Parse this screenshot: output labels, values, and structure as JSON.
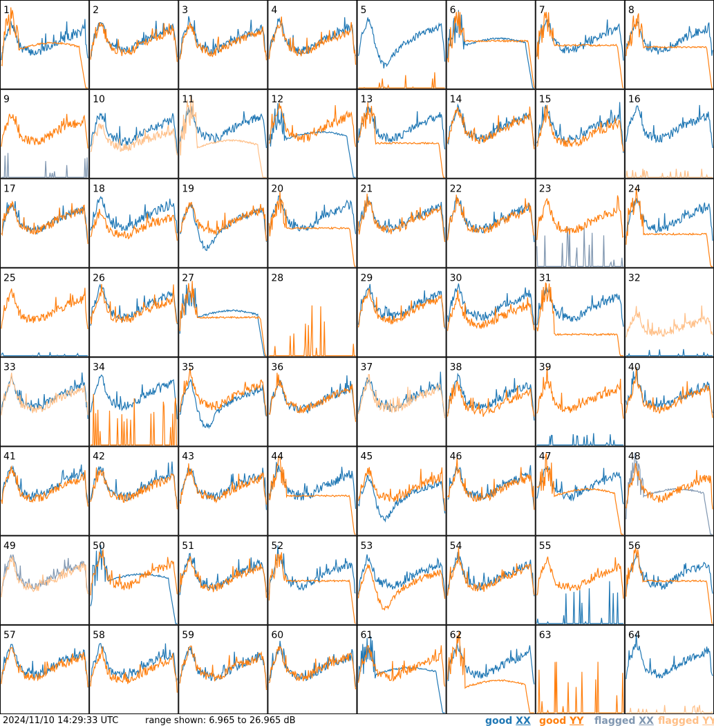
{
  "footer": {
    "timestamp": "2024/11/10 14:29:33 UTC",
    "range_text": "range shown: 6.965 to 26.965 dB",
    "legend": {
      "good_label": "good",
      "flagged_label": "flagged",
      "xx": "XX",
      "yy": "YY"
    }
  },
  "colors": {
    "good_xx": "#1f77b4",
    "good_yy": "#ff7f0e",
    "flagged_xx": "#7f96b0",
    "flagged_yy": "#ffbf87",
    "frame": "#000000"
  },
  "chart_data": {
    "type": "line",
    "layout": "8x8 small multiples",
    "ylim": [
      6.965,
      26.965
    ],
    "yunit": "dB",
    "panels": [
      {
        "id": "1",
        "xx": {
          "flag": "good",
          "shape": "normal",
          "level": 0.55
        },
        "yy": {
          "flag": "good",
          "shape": "hump",
          "level": 0.45
        }
      },
      {
        "id": "2",
        "xx": {
          "flag": "good",
          "shape": "normal",
          "level": 0.58
        },
        "yy": {
          "flag": "good",
          "shape": "normal",
          "level": 0.55
        }
      },
      {
        "id": "3",
        "xx": {
          "flag": "good",
          "shape": "normal",
          "level": 0.58
        },
        "yy": {
          "flag": "good",
          "shape": "normal",
          "level": 0.55
        }
      },
      {
        "id": "4",
        "xx": {
          "flag": "good",
          "shape": "normal",
          "level": 0.58
        },
        "yy": {
          "flag": "good",
          "shape": "normal",
          "level": 0.55
        }
      },
      {
        "id": "5",
        "xx": {
          "flag": "good",
          "shape": "dip",
          "level": 0.6
        },
        "yy": {
          "flag": "good",
          "shape": "spikes",
          "level": 0.2
        }
      },
      {
        "id": "6",
        "xx": {
          "flag": "good",
          "shape": "hump",
          "level": 0.5
        },
        "yy": {
          "flag": "good",
          "shape": "flat",
          "level": 0.55
        }
      },
      {
        "id": "7",
        "xx": {
          "flag": "good",
          "shape": "normal",
          "level": 0.58
        },
        "yy": {
          "flag": "good",
          "shape": "flat",
          "level": 0.5
        }
      },
      {
        "id": "8",
        "xx": {
          "flag": "good",
          "shape": "normal",
          "level": 0.58
        },
        "yy": {
          "flag": "good",
          "shape": "flat",
          "level": 0.48
        }
      },
      {
        "id": "9",
        "xx": {
          "flag": "flagged",
          "shape": "spikes",
          "level": 0.3
        },
        "yy": {
          "flag": "good",
          "shape": "normal",
          "level": 0.55
        }
      },
      {
        "id": "10",
        "xx": {
          "flag": "good",
          "shape": "normal",
          "level": 0.55
        },
        "yy": {
          "flag": "flagged",
          "shape": "normal",
          "level": 0.45
        }
      },
      {
        "id": "11",
        "xx": {
          "flag": "good",
          "shape": "normal",
          "level": 0.6
        },
        "yy": {
          "flag": "flagged",
          "shape": "hump",
          "level": 0.35
        }
      },
      {
        "id": "12",
        "xx": {
          "flag": "good",
          "shape": "hump",
          "level": 0.45
        },
        "yy": {
          "flag": "good",
          "shape": "normal",
          "level": 0.6
        }
      },
      {
        "id": "13",
        "xx": {
          "flag": "good",
          "shape": "normal",
          "level": 0.6
        },
        "yy": {
          "flag": "good",
          "shape": "flat",
          "level": 0.4
        }
      },
      {
        "id": "14",
        "xx": {
          "flag": "good",
          "shape": "normal",
          "level": 0.6
        },
        "yy": {
          "flag": "good",
          "shape": "normal",
          "level": 0.58
        }
      },
      {
        "id": "15",
        "xx": {
          "flag": "good",
          "shape": "normal",
          "level": 0.58
        },
        "yy": {
          "flag": "good",
          "shape": "normal",
          "level": 0.52
        }
      },
      {
        "id": "16",
        "xx": {
          "flag": "good",
          "shape": "normal",
          "level": 0.6
        },
        "yy": {
          "flag": "flagged",
          "shape": "spikes",
          "level": 0.1
        }
      },
      {
        "id": "17",
        "xx": {
          "flag": "good",
          "shape": "normal",
          "level": 0.55
        },
        "yy": {
          "flag": "good",
          "shape": "normal",
          "level": 0.55
        }
      },
      {
        "id": "18",
        "xx": {
          "flag": "good",
          "shape": "normal",
          "level": 0.6
        },
        "yy": {
          "flag": "good",
          "shape": "normal",
          "level": 0.48
        }
      },
      {
        "id": "19",
        "xx": {
          "flag": "good",
          "shape": "dip",
          "level": 0.55
        },
        "yy": {
          "flag": "good",
          "shape": "normal",
          "level": 0.55
        }
      },
      {
        "id": "20",
        "xx": {
          "flag": "good",
          "shape": "normal",
          "level": 0.6
        },
        "yy": {
          "flag": "good",
          "shape": "flat",
          "level": 0.45
        }
      },
      {
        "id": "21",
        "xx": {
          "flag": "good",
          "shape": "normal",
          "level": 0.58
        },
        "yy": {
          "flag": "good",
          "shape": "normal",
          "level": 0.55
        }
      },
      {
        "id": "22",
        "xx": {
          "flag": "good",
          "shape": "normal",
          "level": 0.58
        },
        "yy": {
          "flag": "good",
          "shape": "normal",
          "level": 0.55
        }
      },
      {
        "id": "23",
        "xx": {
          "flag": "flagged",
          "shape": "spikes",
          "level": 0.5
        },
        "yy": {
          "flag": "good",
          "shape": "normal",
          "level": 0.55
        }
      },
      {
        "id": "24",
        "xx": {
          "flag": "good",
          "shape": "normal",
          "level": 0.58
        },
        "yy": {
          "flag": "good",
          "shape": "flat",
          "level": 0.38
        }
      },
      {
        "id": "25",
        "xx": {
          "flag": "good",
          "shape": "spikes",
          "level": 0.05
        },
        "yy": {
          "flag": "good",
          "shape": "normal",
          "level": 0.55
        }
      },
      {
        "id": "26",
        "xx": {
          "flag": "good",
          "shape": "normal",
          "level": 0.6
        },
        "yy": {
          "flag": "good",
          "shape": "normal",
          "level": 0.55
        }
      },
      {
        "id": "27",
        "xx": {
          "flag": "good",
          "shape": "hump",
          "level": 0.45
        },
        "yy": {
          "flag": "good",
          "shape": "flat",
          "level": 0.45
        }
      },
      {
        "id": "28",
        "xx": {
          "flag": "good",
          "shape": "none",
          "level": 0
        },
        "yy": {
          "flag": "good",
          "shape": "spikes",
          "level": 0.6
        }
      },
      {
        "id": "29",
        "xx": {
          "flag": "good",
          "shape": "normal",
          "level": 0.6
        },
        "yy": {
          "flag": "good",
          "shape": "normal",
          "level": 0.55
        }
      },
      {
        "id": "30",
        "xx": {
          "flag": "good",
          "shape": "normal",
          "level": 0.6
        },
        "yy": {
          "flag": "good",
          "shape": "normal",
          "level": 0.48
        }
      },
      {
        "id": "31",
        "xx": {
          "flag": "good",
          "shape": "normal",
          "level": 0.58
        },
        "yy": {
          "flag": "good",
          "shape": "flat",
          "level": 0.25
        }
      },
      {
        "id": "32",
        "xx": {
          "flag": "good",
          "shape": "spikes",
          "level": 0.1
        },
        "yy": {
          "flag": "flagged",
          "shape": "normal",
          "level": 0.35
        }
      },
      {
        "id": "33",
        "xx": {
          "flag": "good",
          "shape": "normal",
          "level": 0.58
        },
        "yy": {
          "flag": "flagged",
          "shape": "normal",
          "level": 0.55
        }
      },
      {
        "id": "34",
        "xx": {
          "flag": "good",
          "shape": "normal",
          "level": 0.6
        },
        "yy": {
          "flag": "good",
          "shape": "spikes",
          "level": 0.6
        }
      },
      {
        "id": "35",
        "xx": {
          "flag": "good",
          "shape": "dip",
          "level": 0.55
        },
        "yy": {
          "flag": "good",
          "shape": "normal",
          "level": 0.6
        }
      },
      {
        "id": "36",
        "xx": {
          "flag": "good",
          "shape": "normal",
          "level": 0.55
        },
        "yy": {
          "flag": "good",
          "shape": "normal",
          "level": 0.55
        }
      },
      {
        "id": "37",
        "xx": {
          "flag": "good",
          "shape": "normal",
          "level": 0.58
        },
        "yy": {
          "flag": "flagged",
          "shape": "normal",
          "level": 0.55
        }
      },
      {
        "id": "38",
        "xx": {
          "flag": "good",
          "shape": "normal",
          "level": 0.58
        },
        "yy": {
          "flag": "good",
          "shape": "normal",
          "level": 0.5
        }
      },
      {
        "id": "39",
        "xx": {
          "flag": "good",
          "shape": "spikes",
          "level": 0.2
        },
        "yy": {
          "flag": "good",
          "shape": "normal",
          "level": 0.55
        }
      },
      {
        "id": "40",
        "xx": {
          "flag": "good",
          "shape": "normal",
          "level": 0.58
        },
        "yy": {
          "flag": "good",
          "shape": "normal",
          "level": 0.55
        }
      },
      {
        "id": "41",
        "xx": {
          "flag": "good",
          "shape": "normal",
          "level": 0.58
        },
        "yy": {
          "flag": "good",
          "shape": "normal",
          "level": 0.55
        }
      },
      {
        "id": "42",
        "xx": {
          "flag": "good",
          "shape": "normal",
          "level": 0.58
        },
        "yy": {
          "flag": "good",
          "shape": "normal",
          "level": 0.55
        }
      },
      {
        "id": "43",
        "xx": {
          "flag": "good",
          "shape": "normal",
          "level": 0.58
        },
        "yy": {
          "flag": "good",
          "shape": "normal",
          "level": 0.55
        }
      },
      {
        "id": "44",
        "xx": {
          "flag": "good",
          "shape": "normal",
          "level": 0.58
        },
        "yy": {
          "flag": "good",
          "shape": "flat",
          "level": 0.45
        }
      },
      {
        "id": "45",
        "xx": {
          "flag": "good",
          "shape": "dip",
          "level": 0.5
        },
        "yy": {
          "flag": "good",
          "shape": "normal",
          "level": 0.55
        }
      },
      {
        "id": "46",
        "xx": {
          "flag": "good",
          "shape": "normal",
          "level": 0.58
        },
        "yy": {
          "flag": "good",
          "shape": "normal",
          "level": 0.55
        }
      },
      {
        "id": "47",
        "xx": {
          "flag": "good",
          "shape": "normal",
          "level": 0.58
        },
        "yy": {
          "flag": "good",
          "shape": "hump",
          "level": 0.45
        }
      },
      {
        "id": "48",
        "xx": {
          "flag": "flagged",
          "shape": "hump",
          "level": 0.45
        },
        "yy": {
          "flag": "good",
          "shape": "normal",
          "level": 0.55
        }
      },
      {
        "id": "49",
        "xx": {
          "flag": "flagged",
          "shape": "normal",
          "level": 0.58
        },
        "yy": {
          "flag": "flagged",
          "shape": "normal",
          "level": 0.55
        }
      },
      {
        "id": "50",
        "xx": {
          "flag": "good",
          "shape": "hump",
          "level": 0.5
        },
        "yy": {
          "flag": "good",
          "shape": "normal",
          "level": 0.58
        }
      },
      {
        "id": "51",
        "xx": {
          "flag": "good",
          "shape": "normal",
          "level": 0.58
        },
        "yy": {
          "flag": "good",
          "shape": "normal",
          "level": 0.55
        }
      },
      {
        "id": "52",
        "xx": {
          "flag": "good",
          "shape": "normal",
          "level": 0.58
        },
        "yy": {
          "flag": "good",
          "shape": "flat",
          "level": 0.5
        }
      },
      {
        "id": "53",
        "xx": {
          "flag": "good",
          "shape": "normal",
          "level": 0.58
        },
        "yy": {
          "flag": "good",
          "shape": "dip",
          "level": 0.5
        }
      },
      {
        "id": "54",
        "xx": {
          "flag": "good",
          "shape": "normal",
          "level": 0.58
        },
        "yy": {
          "flag": "good",
          "shape": "normal",
          "level": 0.55
        }
      },
      {
        "id": "55",
        "xx": {
          "flag": "good",
          "shape": "spikes",
          "level": 0.5
        },
        "yy": {
          "flag": "good",
          "shape": "normal",
          "level": 0.55
        }
      },
      {
        "id": "56",
        "xx": {
          "flag": "good",
          "shape": "normal",
          "level": 0.58
        },
        "yy": {
          "flag": "good",
          "shape": "flat",
          "level": 0.5
        }
      },
      {
        "id": "57",
        "xx": {
          "flag": "good",
          "shape": "normal",
          "level": 0.58
        },
        "yy": {
          "flag": "good",
          "shape": "normal",
          "level": 0.55
        }
      },
      {
        "id": "58",
        "xx": {
          "flag": "good",
          "shape": "normal",
          "level": 0.58
        },
        "yy": {
          "flag": "good",
          "shape": "normal",
          "level": 0.5
        }
      },
      {
        "id": "59",
        "xx": {
          "flag": "good",
          "shape": "normal",
          "level": 0.55
        },
        "yy": {
          "flag": "good",
          "shape": "normal",
          "level": 0.55
        }
      },
      {
        "id": "60",
        "xx": {
          "flag": "good",
          "shape": "normal",
          "level": 0.55
        },
        "yy": {
          "flag": "good",
          "shape": "normal",
          "level": 0.55
        }
      },
      {
        "id": "61",
        "xx": {
          "flag": "good",
          "shape": "hump",
          "level": 0.45
        },
        "yy": {
          "flag": "good",
          "shape": "normal",
          "level": 0.55
        }
      },
      {
        "id": "62",
        "xx": {
          "flag": "good",
          "shape": "normal",
          "level": 0.58
        },
        "yy": {
          "flag": "good",
          "shape": "hump",
          "level": 0.3
        }
      },
      {
        "id": "63",
        "xx": {
          "flag": "good",
          "shape": "none",
          "level": 0
        },
        "yy": {
          "flag": "good",
          "shape": "spikes",
          "level": 0.6
        }
      },
      {
        "id": "64",
        "xx": {
          "flag": "good",
          "shape": "normal",
          "level": 0.6
        },
        "yy": {
          "flag": "flagged",
          "shape": "spikes",
          "level": 0.1
        }
      }
    ]
  }
}
